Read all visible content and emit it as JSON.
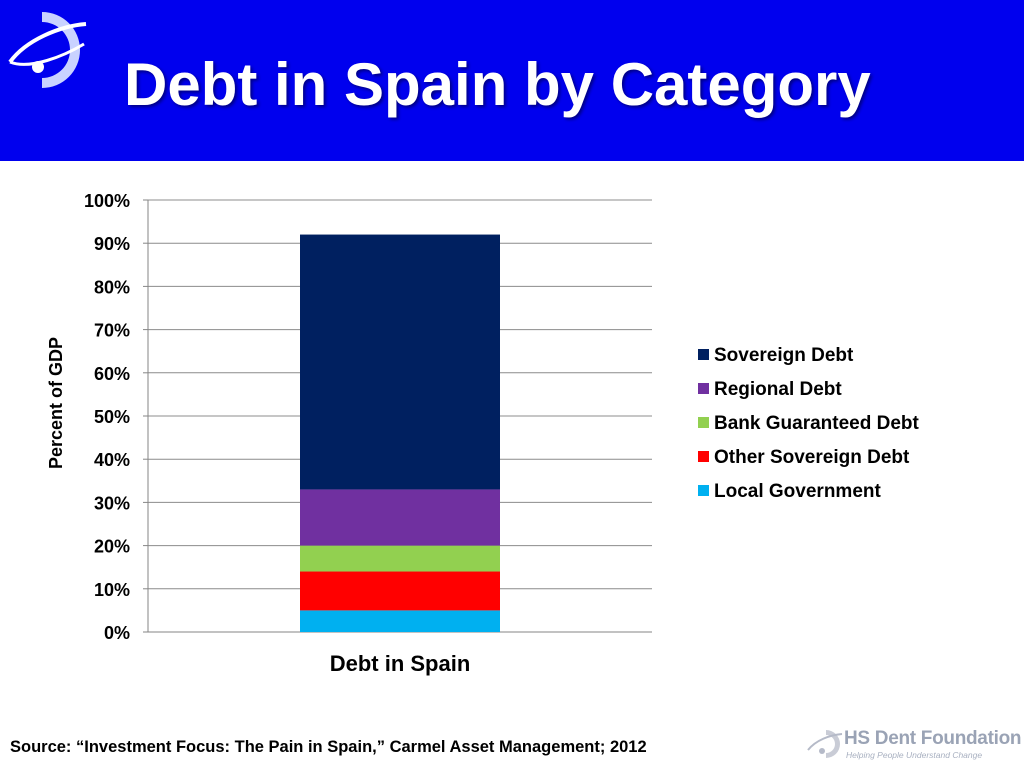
{
  "slide": {
    "title": "Debt in Spain by Category",
    "source": "Source: “Investment Focus: The Pain in Spain,” Carmel Asset Management; 2012",
    "footer_name": "HS Dent Foundation",
    "footer_tagline": "Helping People Understand Change"
  },
  "colors": {
    "header_bg": "#0000ee",
    "sovereign": "#002060",
    "regional": "#7030a0",
    "bank_guaranteed": "#92d050",
    "other_sovereign": "#ff0000",
    "local_government": "#00b0f0"
  },
  "chart_data": {
    "type": "bar",
    "stacked": true,
    "categories": [
      "Debt in Spain"
    ],
    "ylabel": "Percent of GDP",
    "xlabel": "",
    "ylim": [
      0,
      100
    ],
    "y_ticks": [
      "0%",
      "10%",
      "20%",
      "30%",
      "40%",
      "50%",
      "60%",
      "70%",
      "80%",
      "90%",
      "100%"
    ],
    "grid": true,
    "legend_position": "right",
    "series": [
      {
        "name": "Local Government",
        "values": [
          5
        ],
        "color": "#00b0f0"
      },
      {
        "name": "Other Sovereign Debt",
        "values": [
          9
        ],
        "color": "#ff0000"
      },
      {
        "name": "Bank Guaranteed Debt",
        "values": [
          6
        ],
        "color": "#92d050"
      },
      {
        "name": "Regional Debt",
        "values": [
          13
        ],
        "color": "#7030a0"
      },
      {
        "name": "Sovereign Debt",
        "values": [
          59
        ],
        "color": "#002060"
      }
    ]
  }
}
